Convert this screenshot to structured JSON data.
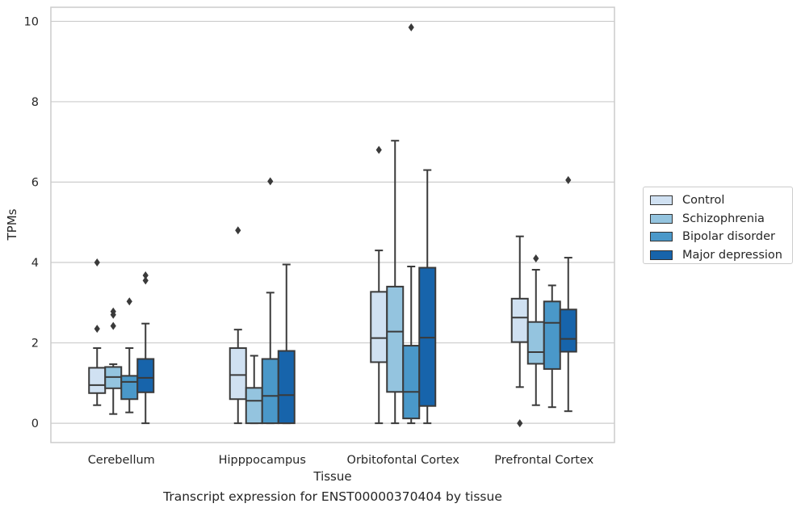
{
  "chart_data": {
    "type": "box",
    "title": "",
    "xlabel": "Tissue",
    "ylabel": "TPMs",
    "ylim": [
      -0.48,
      10.35
    ],
    "yticks": [
      0,
      2,
      4,
      6,
      8,
      10
    ],
    "grid": true,
    "legend_position": "right",
    "categories": [
      "Cerebellum",
      "Hipppocampus",
      "Orbitofontal Cortex",
      "Prefrontal Cortex"
    ],
    "series": [
      {
        "name": "Control",
        "color": "#d0e1f2",
        "boxes": [
          {
            "whislo": 0.45,
            "q1": 0.75,
            "med": 0.95,
            "q3": 1.38,
            "whishi": 1.87,
            "fliers": [
              4.0,
              2.35
            ]
          },
          {
            "whislo": 0.0,
            "q1": 0.6,
            "med": 1.2,
            "q3": 1.87,
            "whishi": 2.33,
            "fliers": [
              4.8
            ]
          },
          {
            "whislo": 0.0,
            "q1": 1.52,
            "med": 2.12,
            "q3": 3.27,
            "whishi": 4.3,
            "fliers": [
              6.8
            ]
          },
          {
            "whislo": 0.9,
            "q1": 2.02,
            "med": 2.63,
            "q3": 3.1,
            "whishi": 4.65,
            "fliers": [
              0.0
            ]
          }
        ]
      },
      {
        "name": "Schizophrenia",
        "color": "#94c4df",
        "boxes": [
          {
            "whislo": 0.23,
            "q1": 0.87,
            "med": 1.15,
            "q3": 1.4,
            "whishi": 1.47,
            "fliers": [
              2.78,
              2.7,
              2.42
            ]
          },
          {
            "whislo": 0.0,
            "q1": 0.0,
            "med": 0.56,
            "q3": 0.88,
            "whishi": 1.68,
            "fliers": []
          },
          {
            "whislo": 0.0,
            "q1": 0.78,
            "med": 2.28,
            "q3": 3.4,
            "whishi": 7.03,
            "fliers": []
          },
          {
            "whislo": 0.45,
            "q1": 1.48,
            "med": 1.77,
            "q3": 2.52,
            "whishi": 3.82,
            "fliers": [
              4.1
            ]
          }
        ]
      },
      {
        "name": "Bipolar disorder",
        "color": "#4a98c9",
        "boxes": [
          {
            "whislo": 0.27,
            "q1": 0.6,
            "med": 1.03,
            "q3": 1.18,
            "whishi": 1.87,
            "fliers": [
              3.03
            ]
          },
          {
            "whislo": 0.0,
            "q1": 0.0,
            "med": 0.68,
            "q3": 1.6,
            "whishi": 3.25,
            "fliers": [
              6.02
            ]
          },
          {
            "whislo": 0.0,
            "q1": 0.12,
            "med": 0.78,
            "q3": 1.93,
            "whishi": 3.9,
            "fliers": [
              9.85
            ]
          },
          {
            "whislo": 0.4,
            "q1": 1.35,
            "med": 2.5,
            "q3": 3.03,
            "whishi": 3.43,
            "fliers": []
          }
        ]
      },
      {
        "name": "Major depression",
        "color": "#1764ab",
        "boxes": [
          {
            "whislo": 0.0,
            "q1": 0.77,
            "med": 1.13,
            "q3": 1.6,
            "whishi": 2.48,
            "fliers": [
              3.68,
              3.55
            ]
          },
          {
            "whislo": 0.0,
            "q1": 0.0,
            "med": 0.7,
            "q3": 1.8,
            "whishi": 3.95,
            "fliers": []
          },
          {
            "whislo": 0.0,
            "q1": 0.43,
            "med": 2.13,
            "q3": 3.87,
            "whishi": 6.3,
            "fliers": []
          },
          {
            "whislo": 0.3,
            "q1": 1.78,
            "med": 2.1,
            "q3": 2.83,
            "whishi": 4.12,
            "fliers": [
              6.05
            ]
          }
        ]
      }
    ]
  },
  "caption": "Transcript expression for ENST00000370404 by tissue"
}
